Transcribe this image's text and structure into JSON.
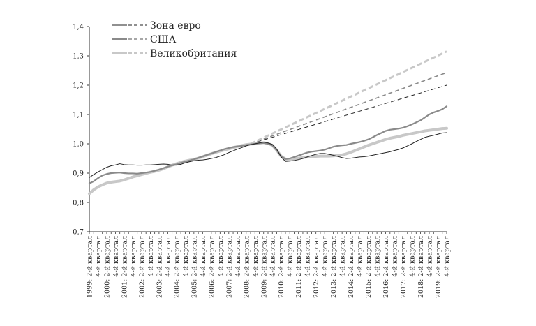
{
  "chart_data": {
    "type": "line",
    "title": "",
    "xlabel": "",
    "ylabel": "",
    "ylim": [
      0.7,
      1.4
    ],
    "yticks": [
      0.7,
      0.8,
      0.9,
      1.0,
      1.1,
      1.2,
      1.3,
      1.4
    ],
    "ytick_labels": [
      "0,7",
      "0,8",
      "0,9",
      "1,0",
      "1,1",
      "1,2",
      "1,3",
      "1,4"
    ],
    "grid": false,
    "legend_position": "top-left",
    "x_start": "1999: 2-й квартал",
    "x_end": "2019: 4-й квартал",
    "x_period_count": 83,
    "x_labels": [
      "1999: 2-й квартал",
      "4-й квартал",
      "2000: 2-й квартал",
      "4-й квартал",
      "2001: 2-й квартал",
      "4-й квартал",
      "2002: 2-й квартал",
      "4-й квартал",
      "2003: 2-й квартал",
      "4-й квартал",
      "2004: 2-й квартал",
      "4-й квартал",
      "2005: 2-й квартал",
      "4-й квартал",
      "2006: 2-й квартал",
      "4-й квартал",
      "2007: 2-й квартал",
      "4-й квартал",
      "2008: 2-й квартал",
      "4-й квартал",
      "2009: 2-й квартал",
      "4-й квартал",
      "2010: 2-й квартал",
      "4-й квартал",
      "2011: 2-й квартал",
      "4-й квартал",
      "2012: 2-й квартал",
      "4-й квартал",
      "2013: 2-й квартал",
      "4-й квартал",
      "2014: 2-й квартал",
      "4-й квартал",
      "2015: 2-й квартал",
      "4-й квартал",
      "2016: 2-й квартал",
      "4-й квартал",
      "2017: 2-й квартал",
      "4-й квартал",
      "2018: 2-й квартал",
      "4-й квартал",
      "2019: 2-й квартал",
      "4-й квартал"
    ],
    "series": [
      {
        "name": "Зона евро",
        "color": "#222222",
        "style": "thin",
        "values": [
          0.885,
          0.895,
          0.904,
          0.912,
          0.92,
          0.925,
          0.928,
          0.932,
          0.929,
          0.928,
          0.928,
          0.927,
          0.927,
          0.928,
          0.928,
          0.929,
          0.93,
          0.931,
          0.93,
          0.927,
          0.927,
          0.93,
          0.935,
          0.939,
          0.942,
          0.944,
          0.945,
          0.947,
          0.95,
          0.953,
          0.958,
          0.963,
          0.97,
          0.976,
          0.982,
          0.987,
          0.993,
          0.997,
          1.0,
          1.003,
          1.006,
          1.003,
          0.998,
          0.982,
          0.955,
          0.94,
          0.941,
          0.943,
          0.946,
          0.95,
          0.955,
          0.96,
          0.964,
          0.967,
          0.967,
          0.964,
          0.961,
          0.957,
          0.953,
          0.95,
          0.951,
          0.953,
          0.955,
          0.956,
          0.958,
          0.961,
          0.964,
          0.967,
          0.97,
          0.973,
          0.977,
          0.981,
          0.986,
          0.993,
          1.0,
          1.008,
          1.015,
          1.022,
          1.026,
          1.029,
          1.033,
          1.037,
          1.038
        ]
      },
      {
        "name": "США",
        "color": "#8a8a8a",
        "style": "medium",
        "values": [
          0.865,
          0.872,
          0.883,
          0.892,
          0.897,
          0.9,
          0.901,
          0.902,
          0.9,
          0.899,
          0.899,
          0.898,
          0.9,
          0.902,
          0.904,
          0.908,
          0.912,
          0.917,
          0.922,
          0.927,
          0.93,
          0.935,
          0.939,
          0.943,
          0.947,
          0.952,
          0.957,
          0.962,
          0.967,
          0.972,
          0.977,
          0.982,
          0.986,
          0.989,
          0.991,
          0.993,
          0.996,
          0.998,
          1.0,
          1.002,
          1.003,
          1.0,
          0.995,
          0.978,
          0.958,
          0.948,
          0.95,
          0.955,
          0.96,
          0.965,
          0.97,
          0.973,
          0.975,
          0.977,
          0.98,
          0.985,
          0.99,
          0.993,
          0.995,
          0.996,
          1.0,
          1.003,
          1.006,
          1.01,
          1.015,
          1.022,
          1.03,
          1.037,
          1.044,
          1.048,
          1.05,
          1.052,
          1.055,
          1.06,
          1.066,
          1.073,
          1.08,
          1.09,
          1.1,
          1.107,
          1.112,
          1.118,
          1.128
        ]
      },
      {
        "name": "Великобритания",
        "color": "#c8c8c8",
        "style": "thick",
        "values": [
          0.83,
          0.843,
          0.853,
          0.86,
          0.866,
          0.869,
          0.871,
          0.873,
          0.877,
          0.882,
          0.887,
          0.891,
          0.895,
          0.899,
          0.903,
          0.906,
          0.91,
          0.915,
          0.921,
          0.927,
          0.932,
          0.937,
          0.941,
          0.944,
          0.947,
          0.951,
          0.956,
          0.961,
          0.966,
          0.971,
          0.975,
          0.979,
          0.983,
          0.987,
          0.991,
          0.994,
          0.997,
          0.999,
          1.0,
          1.002,
          1.004,
          1.001,
          0.995,
          0.978,
          0.958,
          0.948,
          0.947,
          0.949,
          0.951,
          0.953,
          0.955,
          0.956,
          0.957,
          0.958,
          0.958,
          0.958,
          0.959,
          0.96,
          0.962,
          0.966,
          0.971,
          0.977,
          0.983,
          0.989,
          0.995,
          1.0,
          1.005,
          1.01,
          1.015,
          1.019,
          1.022,
          1.025,
          1.029,
          1.032,
          1.035,
          1.038,
          1.041,
          1.044,
          1.046,
          1.048,
          1.05,
          1.052,
          1.053
        ]
      }
    ],
    "trend_lines": [
      {
        "name": "Зона евро",
        "color": "#222222",
        "start_period": 37,
        "values": [
          1.0,
          1.2
        ]
      },
      {
        "name": "США",
        "color": "#8a8a8a",
        "start_period": 37,
        "values": [
          1.0,
          1.243
        ]
      },
      {
        "name": "Великобритания",
        "color": "#c8c8c8",
        "start_period": 37,
        "values": [
          1.0,
          1.315
        ]
      }
    ]
  }
}
